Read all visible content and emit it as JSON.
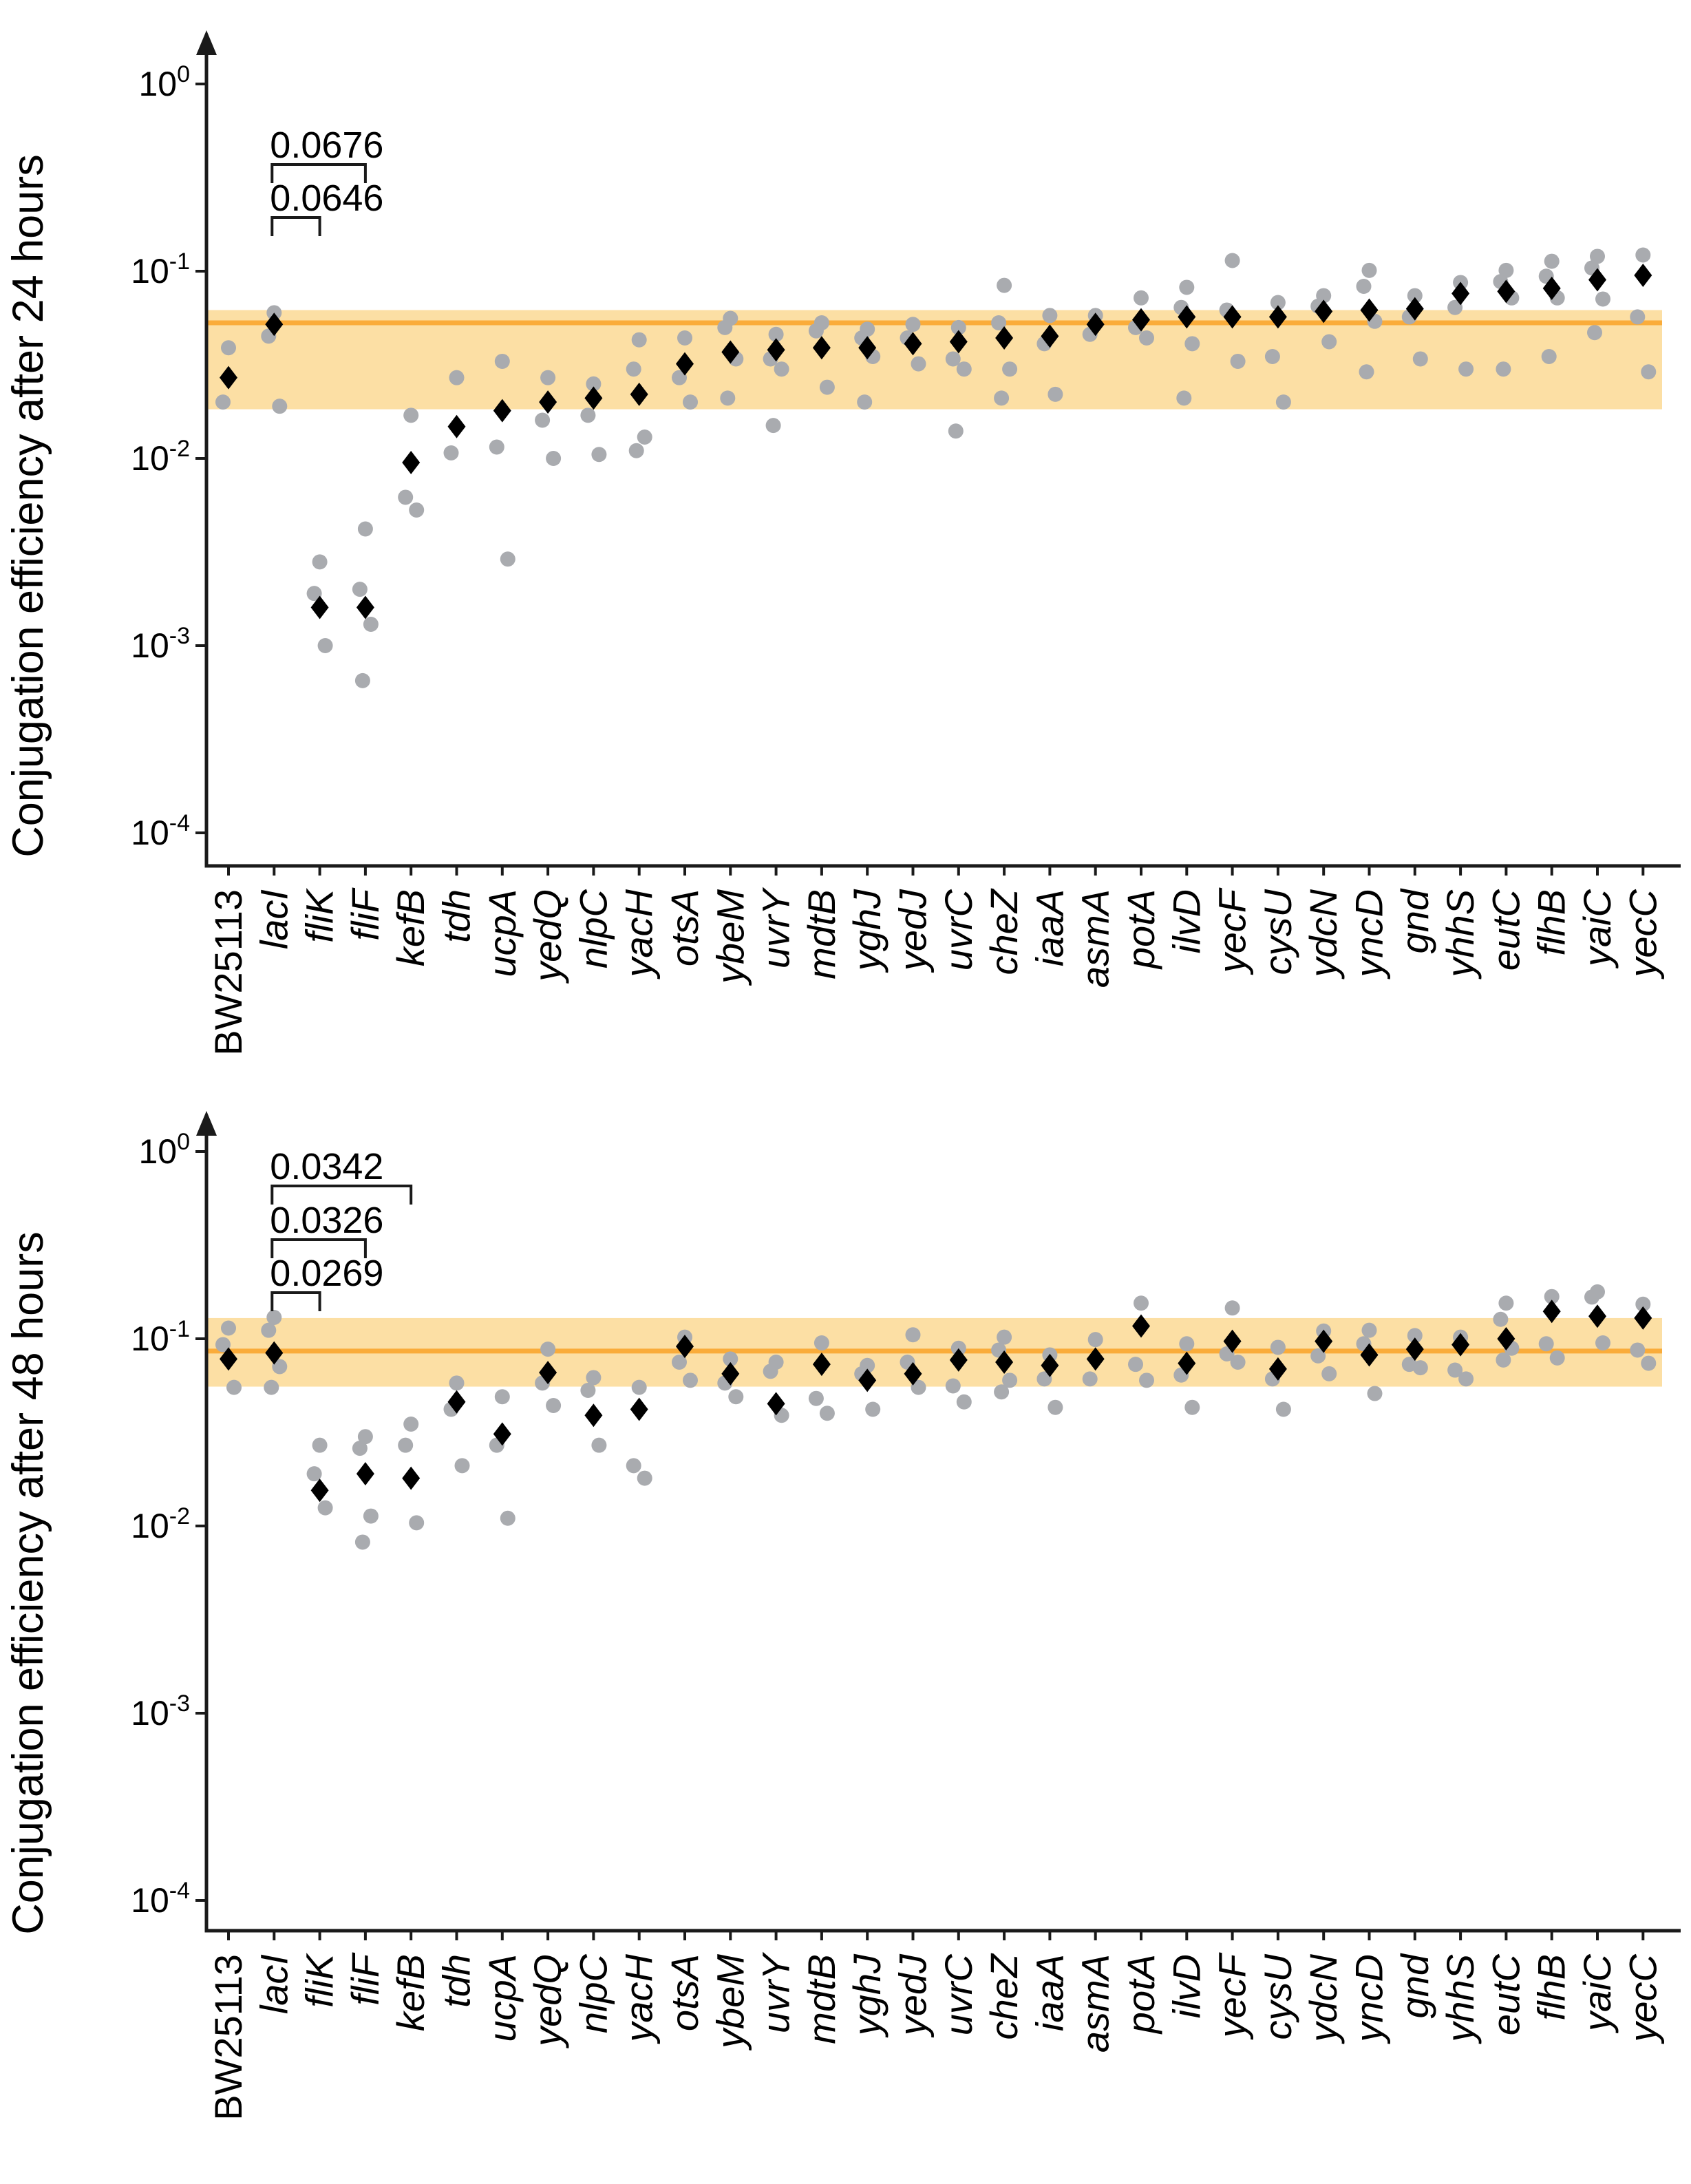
{
  "colors": {
    "reference_band": "#FCDFA4",
    "reference_line": "#FAAC3A",
    "replicate_marker": "#A9ABAF",
    "mean_marker": "#000000",
    "axis": "#1A1A1A"
  },
  "chart_data": [
    {
      "type": "scatter",
      "title": "",
      "ylabel": "Conjugation efficiency after 24 hours",
      "xlabel": "",
      "log_scale": true,
      "grid": false,
      "ylim": [
        0.0001,
        1
      ],
      "yticks": [
        "10^0",
        "10^-1",
        "10^-2",
        "10^-3",
        "10^-4"
      ],
      "legend": "none",
      "reference_line": 0.053,
      "reference_band": [
        0.0183,
        0.062
      ],
      "categories": [
        "BW25113",
        "lacI",
        "fliK",
        "fliF",
        "kefB",
        "tdh",
        "ucpA",
        "yedQ",
        "nlpC",
        "yacH",
        "otsA",
        "ybeM",
        "uvrY",
        "mdtB",
        "yghJ",
        "yedJ",
        "uvrC",
        "cheZ",
        "iaaA",
        "asmA",
        "potA",
        "ilvD",
        "yecF",
        "cysU",
        "ydcN",
        "yncD",
        "gnd",
        "yhhS",
        "eutC",
        "flhB",
        "yaiC",
        "yecC"
      ],
      "upright_categories": [
        "BW25113"
      ],
      "series": [
        {
          "name": "mean",
          "marker": "diamond",
          "values": [
            0.027,
            0.052,
            0.0016,
            0.0016,
            0.0095,
            0.0148,
            0.018,
            0.02,
            0.021,
            0.022,
            0.032,
            0.037,
            0.038,
            0.039,
            0.039,
            0.041,
            0.042,
            0.044,
            0.045,
            0.052,
            0.055,
            0.057,
            0.057,
            0.057,
            0.061,
            0.062,
            0.063,
            0.076,
            0.078,
            0.081,
            0.09,
            0.095
          ]
        },
        {
          "name": "replicates",
          "marker": "circle",
          "values": [
            [
              0.039,
              0.02
            ],
            [
              0.06,
              0.045,
              0.019
            ],
            [
              0.0028,
              0.0019,
              0.001
            ],
            [
              0.0042,
              0.002,
              0.0013,
              0.00065
            ],
            [
              0.017,
              0.0062,
              0.0053
            ],
            [
              0.027,
              0.0107
            ],
            [
              0.033,
              0.0115,
              0.0029
            ],
            [
              0.027,
              0.016,
              0.01
            ],
            [
              0.025,
              0.017,
              0.0105
            ],
            [
              0.043,
              0.03,
              0.013,
              0.011
            ],
            [
              0.044,
              0.027,
              0.02
            ],
            [
              0.056,
              0.05,
              0.034,
              0.021
            ],
            [
              0.046,
              0.034,
              0.03,
              0.015
            ],
            [
              0.053,
              0.048,
              0.024
            ],
            [
              0.049,
              0.044,
              0.035,
              0.02
            ],
            [
              0.052,
              0.044,
              0.032
            ],
            [
              0.05,
              0.034,
              0.03,
              0.014
            ],
            [
              0.084,
              0.053,
              0.03,
              0.021
            ],
            [
              0.058,
              0.041,
              0.022
            ],
            [
              0.058,
              0.046
            ],
            [
              0.072,
              0.05,
              0.044
            ],
            [
              0.082,
              0.064,
              0.041,
              0.021
            ],
            [
              0.114,
              0.062,
              0.033
            ],
            [
              0.068,
              0.035,
              0.02
            ],
            [
              0.074,
              0.065,
              0.042
            ],
            [
              0.101,
              0.083,
              0.054,
              0.029
            ],
            [
              0.074,
              0.057,
              0.034
            ],
            [
              0.087,
              0.064,
              0.03
            ],
            [
              0.101,
              0.088,
              0.072,
              0.03
            ],
            [
              0.113,
              0.094,
              0.072,
              0.035
            ],
            [
              0.12,
              0.104,
              0.071,
              0.047
            ],
            [
              0.122,
              0.057,
              0.029
            ]
          ]
        }
      ],
      "annotations": [
        {
          "label": "0.0676",
          "from": "lacI",
          "to": "fliF"
        },
        {
          "label": "0.0646",
          "from": "lacI",
          "to": "fliK"
        }
      ]
    },
    {
      "type": "scatter",
      "title": "",
      "ylabel": "Conjugation efficiency after 48 hours",
      "xlabel": "",
      "log_scale": true,
      "grid": false,
      "ylim": [
        0.0001,
        1
      ],
      "yticks": [
        "10^0",
        "10^-1",
        "10^-2",
        "10^-3",
        "10^-4"
      ],
      "legend": "none",
      "reference_line": 0.086,
      "reference_band": [
        0.0555,
        0.129
      ],
      "categories": [
        "BW25113",
        "lacI",
        "fliK",
        "fliF",
        "kefB",
        "tdh",
        "ucpA",
        "yedQ",
        "nlpC",
        "yacH",
        "otsA",
        "ybeM",
        "uvrY",
        "mdtB",
        "yghJ",
        "yedJ",
        "uvrC",
        "cheZ",
        "iaaA",
        "asmA",
        "potA",
        "ilvD",
        "yecF",
        "cysU",
        "ydcN",
        "yncD",
        "gnd",
        "yhhS",
        "eutC",
        "flhB",
        "yaiC",
        "yecC"
      ],
      "upright_categories": [
        "BW25113"
      ],
      "series": [
        {
          "name": "mean",
          "marker": "diamond",
          "values": [
            0.078,
            0.084,
            0.0155,
            0.019,
            0.018,
            0.046,
            0.031,
            0.066,
            0.039,
            0.042,
            0.091,
            0.065,
            0.045,
            0.073,
            0.06,
            0.065,
            0.077,
            0.075,
            0.072,
            0.078,
            0.117,
            0.074,
            0.097,
            0.069,
            0.097,
            0.082,
            0.088,
            0.093,
            0.1,
            0.14,
            0.132,
            0.129
          ]
        },
        {
          "name": "replicates",
          "marker": "circle",
          "values": [
            [
              0.114,
              0.093,
              0.055
            ],
            [
              0.13,
              0.111,
              0.071,
              0.055
            ],
            [
              0.027,
              0.019,
              0.0125
            ],
            [
              0.03,
              0.026,
              0.0113,
              0.0082
            ],
            [
              0.035,
              0.027,
              0.0104
            ],
            [
              0.058,
              0.042,
              0.021
            ],
            [
              0.049,
              0.027,
              0.011
            ],
            [
              0.088,
              0.058,
              0.044
            ],
            [
              0.062,
              0.053,
              0.027
            ],
            [
              0.055,
              0.021,
              0.018
            ],
            [
              0.102,
              0.075,
              0.06
            ],
            [
              0.078,
              0.058,
              0.049
            ],
            [
              0.075,
              0.067,
              0.039
            ],
            [
              0.095,
              0.048,
              0.04
            ],
            [
              0.072,
              0.065,
              0.042
            ],
            [
              0.105,
              0.075,
              0.055
            ],
            [
              0.089,
              0.056,
              0.046
            ],
            [
              0.102,
              0.087,
              0.06,
              0.052
            ],
            [
              0.082,
              0.061,
              0.043
            ],
            [
              0.099,
              0.061
            ],
            [
              0.155,
              0.073,
              0.06
            ],
            [
              0.094,
              0.064,
              0.043
            ],
            [
              0.146,
              0.083,
              0.075
            ],
            [
              0.09,
              0.061,
              0.042
            ],
            [
              0.11,
              0.081,
              0.065
            ],
            [
              0.111,
              0.094,
              0.051
            ],
            [
              0.104,
              0.073,
              0.07
            ],
            [
              0.102,
              0.068,
              0.061
            ],
            [
              0.155,
              0.127,
              0.089,
              0.077
            ],
            [
              0.168,
              0.094,
              0.079
            ],
            [
              0.178,
              0.167,
              0.095
            ],
            [
              0.153,
              0.087,
              0.074
            ]
          ]
        }
      ],
      "annotations": [
        {
          "label": "0.0342",
          "from": "lacI",
          "to": "kefB"
        },
        {
          "label": "0.0326",
          "from": "lacI",
          "to": "fliF"
        },
        {
          "label": "0.0269",
          "from": "lacI",
          "to": "fliK"
        }
      ]
    }
  ]
}
